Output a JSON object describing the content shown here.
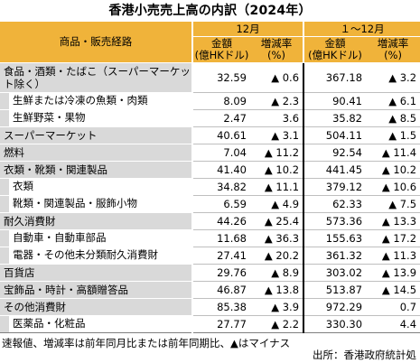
{
  "title": "香港小売売上高の内訳（2024年）",
  "header": {
    "category_label": "商品・販売経路",
    "period_december": "12月",
    "period_full_year": "１～12月",
    "amount_label_line1": "金額",
    "amount_label_line2": "(億HKドル)",
    "change_label_line1": "増減率",
    "change_label_line2": "(%)"
  },
  "rows": [
    {
      "label": "食品・酒類・たばこ（スーパーマーケット除く）",
      "dec_amount": "32.59",
      "dec_change": "▲ 0.6",
      "ytd_amount": "367.18",
      "ytd_change": "▲ 3.2"
    },
    {
      "label": "生鮮または冷凍の魚類・肉類",
      "dec_amount": "8.09",
      "dec_change": "▲ 2.3",
      "ytd_amount": "90.41",
      "ytd_change": "▲ 6.1"
    },
    {
      "label": "生鮮野菜・果物",
      "dec_amount": "2.47",
      "dec_change": "3.6",
      "ytd_amount": "35.82",
      "ytd_change": "▲ 8.5"
    },
    {
      "label": "スーパーマーケット",
      "dec_amount": "40.61",
      "dec_change": "▲ 3.1",
      "ytd_amount": "504.11",
      "ytd_change": "▲ 1.5"
    },
    {
      "label": "燃料",
      "dec_amount": "7.04",
      "dec_change": "▲ 11.2",
      "ytd_amount": "92.54",
      "ytd_change": "▲ 11.4"
    },
    {
      "label": "衣類・靴類・関連製品",
      "dec_amount": "41.40",
      "dec_change": "▲ 10.2",
      "ytd_amount": "441.45",
      "ytd_change": "▲ 10.2"
    },
    {
      "label": "衣類",
      "dec_amount": "34.82",
      "dec_change": "▲ 11.1",
      "ytd_amount": "379.12",
      "ytd_change": "▲ 10.6"
    },
    {
      "label": "靴類・関連製品・服飾小物",
      "dec_amount": "6.59",
      "dec_change": "▲ 4.9",
      "ytd_amount": "62.33",
      "ytd_change": "▲ 7.5"
    },
    {
      "label": "耐久消費財",
      "dec_amount": "44.26",
      "dec_change": "▲ 25.4",
      "ytd_amount": "573.36",
      "ytd_change": "▲ 13.3"
    },
    {
      "label": "自動車・自動車部品",
      "dec_amount": "11.68",
      "dec_change": "▲ 36.3",
      "ytd_amount": "155.63",
      "ytd_change": "▲ 17.2"
    },
    {
      "label": "電器・その他未分類耐久消費財",
      "dec_amount": "27.41",
      "dec_change": "▲ 20.2",
      "ytd_amount": "361.32",
      "ytd_change": "▲ 11.3"
    },
    {
      "label": "百貨店",
      "dec_amount": "29.76",
      "dec_change": "▲ 8.9",
      "ytd_amount": "303.02",
      "ytd_change": "▲ 13.9"
    },
    {
      "label": "宝飾品・時計・高額贈答品",
      "dec_amount": "46.87",
      "dec_change": "▲ 13.8",
      "ytd_amount": "513.87",
      "ytd_change": "▲ 14.5"
    },
    {
      "label": "その他消費財",
      "dec_amount": "85.38",
      "dec_change": "▲ 3.9",
      "ytd_amount": "972.29",
      "ytd_change": "0.7"
    },
    {
      "label": "医薬品・化粧品",
      "dec_amount": "27.77",
      "dec_change": "▲ 2.2",
      "ytd_amount": "330.30",
      "ytd_change": "4.4"
    }
  ],
  "footnote": "速報値、増減率は前年同月比または前年同期比、▲はマイナス",
  "source": "出所：香港政府統計処"
}
